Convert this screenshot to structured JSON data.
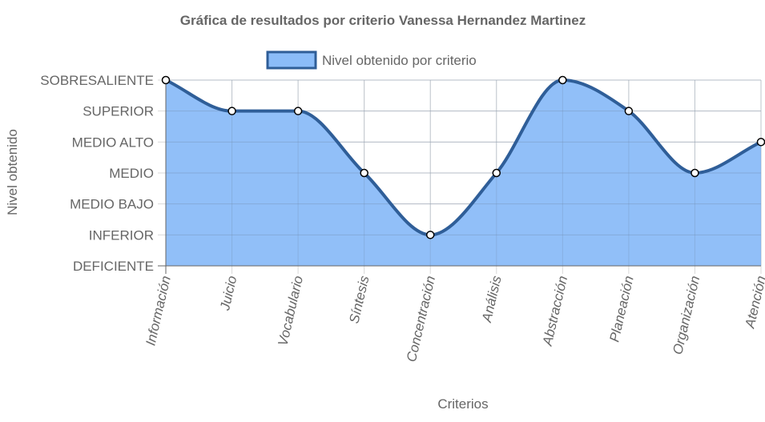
{
  "chart_data": {
    "type": "area",
    "title": "Gráfica de resultados por criterio Vanessa Hernandez Martinez",
    "xlabel": "Criterios",
    "ylabel": "Nivel obtenido",
    "categories": [
      "Información",
      "Juicio",
      "Vocabulario",
      "Síntesis",
      "Concentración",
      "Análisis",
      "Abstracción",
      "Planeación",
      "Organización",
      "Atención"
    ],
    "y_levels": [
      "DEFICIENTE",
      "INFERIOR",
      "MEDIO BAJO",
      "MEDIO",
      "MEDIO ALTO",
      "SUPERIOR",
      "SOBRESALIENTE"
    ],
    "series": [
      {
        "name": "Nivel obtenido por criterio",
        "values": [
          "SOBRESALIENTE",
          "SUPERIOR",
          "SUPERIOR",
          "MEDIO",
          "INFERIOR",
          "MEDIO",
          "SOBRESALIENTE",
          "SUPERIOR",
          "MEDIO",
          "MEDIO ALTO"
        ]
      }
    ],
    "legend_position": "top",
    "grid": true,
    "colors": {
      "fill": "#8bbcf8",
      "line": "#2f5e98",
      "point_fill": "#ffffff",
      "point_stroke": "#000000",
      "grid": "#d9d9d9",
      "axis": "#666666",
      "text": "#666666"
    }
  }
}
